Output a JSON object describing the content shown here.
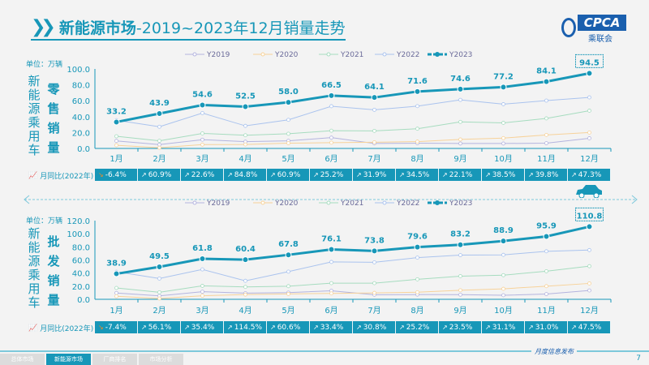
{
  "header": {
    "title_bold": "新能源市场",
    "title_rest": "-2019~2023年12月销量走势",
    "logo_text": "CPCA",
    "logo_sub": "乘联会"
  },
  "colors": {
    "Y2019": "#b4b4df",
    "Y2020": "#f7d29a",
    "Y2021": "#a6dcbf",
    "Y2022": "#aac3ee",
    "Y2023": "#1797b8",
    "yoy_bg": "#1797b8",
    "negative_icon": "#f08a24"
  },
  "months": [
    "1月",
    "2月",
    "3月",
    "4月",
    "5月",
    "6月",
    "7月",
    "8月",
    "9月",
    "10月",
    "11月",
    "12月"
  ],
  "yoy_label": "月同比(2022年)",
  "chart_data": [
    {
      "type": "line",
      "side_label": "新能源乘用车",
      "chart_label": "零售销量",
      "unit": "单位：万辆",
      "ylim": [
        0,
        100
      ],
      "yticks": [
        "0.0",
        "20.0",
        "40.0",
        "60.0",
        "80.0",
        "100.0"
      ],
      "legend": "top",
      "categories": [
        "1月",
        "2月",
        "3月",
        "4月",
        "5月",
        "6月",
        "7月",
        "8月",
        "9月",
        "10月",
        "11月",
        "12月"
      ],
      "series": [
        {
          "name": "Y2019",
          "values": [
            9.5,
            4.8,
            11.0,
            8.5,
            9.6,
            13.6,
            6.3,
            6.6,
            6.2,
            6.2,
            6.6,
            12.8
          ]
        },
        {
          "name": "Y2020",
          "values": [
            4.0,
            0.9,
            4.8,
            5.0,
            6.6,
            7.3,
            7.8,
            8.6,
            11.3,
            13.0,
            17.0,
            20.0
          ]
        },
        {
          "name": "Y2021",
          "values": [
            15.3,
            9.6,
            18.9,
            16.6,
            18.5,
            22.3,
            22.1,
            24.8,
            33.4,
            32.2,
            37.8,
            47.5
          ]
        },
        {
          "name": "Y2022",
          "values": [
            35.5,
            27.3,
            44.5,
            28.4,
            36.0,
            53.1,
            48.6,
            53.2,
            61.1,
            55.7,
            60.2,
            64.2
          ]
        },
        {
          "name": "Y2023",
          "values": [
            33.2,
            43.9,
            54.6,
            52.5,
            58.0,
            66.5,
            64.1,
            71.6,
            74.6,
            77.2,
            84.1,
            94.5
          ],
          "labels": [
            "33.2",
            "43.9",
            "54.6",
            "52.5",
            "58.0",
            "66.5",
            "64.1",
            "71.6",
            "74.6",
            "77.2",
            "84.1",
            "94.5"
          ]
        }
      ],
      "yoy": [
        "-6.4%",
        "60.9%",
        "22.6%",
        "84.8%",
        "60.9%",
        "25.2%",
        "31.9%",
        "34.5%",
        "22.1%",
        "38.5%",
        "39.8%",
        "47.3%"
      ]
    },
    {
      "type": "line",
      "side_label": "新能源乘用车",
      "chart_label": "批发销量",
      "unit": "单位：万辆",
      "ylim": [
        0,
        120
      ],
      "yticks": [
        "0.0",
        "20.0",
        "40.0",
        "60.0",
        "80.0",
        "100.0",
        "120.0"
      ],
      "legend": "top",
      "categories": [
        "1月",
        "2月",
        "3月",
        "4月",
        "5月",
        "6月",
        "7月",
        "8月",
        "9月",
        "10月",
        "11月",
        "12月"
      ],
      "series": [
        {
          "name": "Y2019",
          "values": [
            9.6,
            5.3,
            11.6,
            9.4,
            10.2,
            13.0,
            7.0,
            7.2,
            7.1,
            6.2,
            8.0,
            13.5
          ]
        },
        {
          "name": "Y2020",
          "values": [
            4.6,
            1.2,
            5.4,
            7.2,
            8.2,
            9.0,
            9.8,
            10.8,
            13.8,
            16.0,
            20.0,
            24.2
          ]
        },
        {
          "name": "Y2021",
          "values": [
            17.3,
            10.7,
            20.5,
            18.9,
            20.0,
            24.6,
            24.6,
            30.5,
            35.3,
            36.8,
            42.8,
            50.5
          ]
        },
        {
          "name": "Y2022",
          "values": [
            42.0,
            31.7,
            45.6,
            28.2,
            42.2,
            57.0,
            56.4,
            63.6,
            67.4,
            67.8,
            73.2,
            75.1
          ]
        },
        {
          "name": "Y2023",
          "values": [
            38.9,
            49.5,
            61.8,
            60.4,
            67.8,
            76.1,
            73.8,
            79.6,
            83.2,
            88.9,
            95.9,
            110.8
          ],
          "labels": [
            "38.9",
            "49.5",
            "61.8",
            "60.4",
            "67.8",
            "76.1",
            "73.8",
            "79.6",
            "83.2",
            "88.9",
            "95.9",
            "110.8"
          ]
        }
      ],
      "yoy": [
        "-7.4%",
        "56.1%",
        "35.4%",
        "114.5%",
        "60.6%",
        "33.4%",
        "30.8%",
        "25.2%",
        "23.5%",
        "31.1%",
        "31.0%",
        "47.5%"
      ]
    }
  ],
  "footer": {
    "tabs": [
      "总体市场",
      "新能源市场",
      "厂商排名",
      "市场分析"
    ],
    "active_tab": 1,
    "release": "月度信息发布",
    "page": "7"
  }
}
